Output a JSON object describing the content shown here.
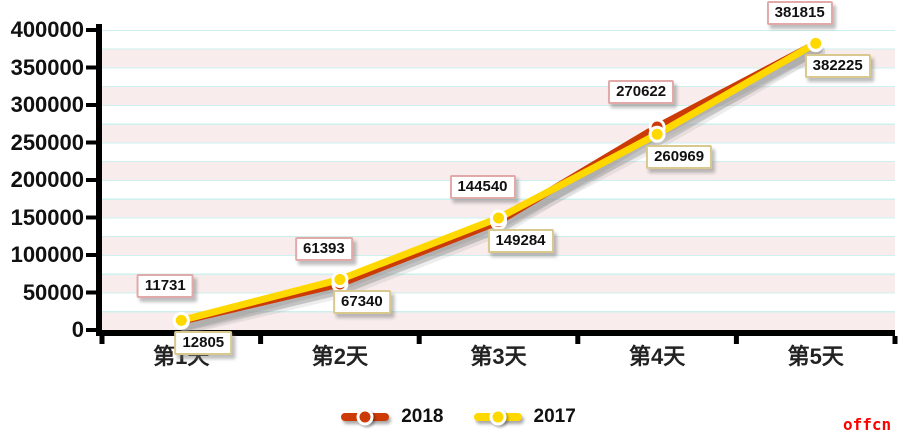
{
  "chart_data": {
    "type": "line",
    "categories": [
      "第1天",
      "第2天",
      "第3天",
      "第4天",
      "第5天"
    ],
    "series": [
      {
        "name": "2018",
        "color": "#cc3a06",
        "values": [
          11731,
          61393,
          144540,
          270622,
          381815
        ]
      },
      {
        "name": "2017",
        "color": "#ffd800",
        "values": [
          12805,
          67340,
          149284,
          260969,
          382225
        ]
      }
    ],
    "title": "",
    "xlabel": "",
    "ylabel": "",
    "ylim": [
      0,
      400000
    ],
    "y_tick_step": 50000,
    "y_tick_labels": [
      "400000",
      "350000",
      "300000",
      "250000",
      "200000",
      "150000",
      "100000",
      "50000",
      "0"
    ],
    "grid": "horizontal bands every 25000, alternating white and pink, pale cyan gridlines",
    "legend_position": "bottom-center",
    "data_labels": "each point labelled with its exact value in a bordered box"
  },
  "legend": {
    "items": [
      {
        "label": "2018",
        "color": "#cc3a06"
      },
      {
        "label": "2017",
        "color": "#ffd800"
      }
    ]
  },
  "watermark": {
    "text": "offcn",
    "color": "#ff0000"
  },
  "colors": {
    "axis": "#000000",
    "band_pink": "#f8ecec",
    "band_white": "#ffffff",
    "gridline_cyan": "#cbf0ee",
    "label_border_2018": "#e2a9a9",
    "label_border_2017": "#d9c98e",
    "shadow": "#9a9a9a"
  }
}
